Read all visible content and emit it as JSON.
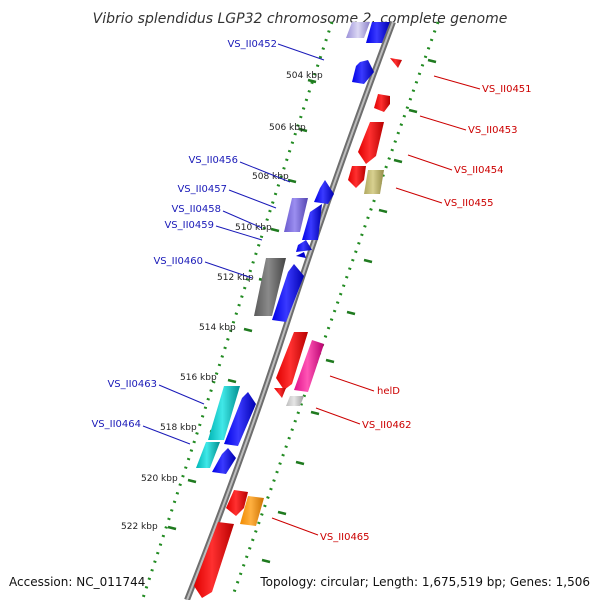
{
  "title": "Vibrio splendidus LGP32 chromosome 2, complete genome",
  "footer": {
    "accession": "Accession: NC_011744",
    "summary": "Topology: circular; Length: 1,675,519 bp; Genes: 1,506"
  },
  "colors": {
    "backbone": "#8c8c8c",
    "forward_label": "#1a1ab8",
    "reverse_label": "#cc0000",
    "forward_dots": "#228b22",
    "reverse_dots": "#228b22"
  },
  "ruler": [
    "504 kbp",
    "506 kbp",
    "508 kbp",
    "510 kbp",
    "512 kbp",
    "514 kbp",
    "516 kbp",
    "518 kbp",
    "520 kbp",
    "522 kbp"
  ],
  "forward_genes": [
    {
      "label": "VS_II0452"
    },
    {
      "label": "VS_II0456"
    },
    {
      "label": "VS_II0457"
    },
    {
      "label": "VS_II0458"
    },
    {
      "label": "VS_II0459"
    },
    {
      "label": "VS_II0460"
    },
    {
      "label": "VS_II0463"
    },
    {
      "label": "VS_II0464"
    }
  ],
  "reverse_genes": [
    {
      "label": "VS_II0451"
    },
    {
      "label": "VS_II0453"
    },
    {
      "label": "VS_II0454"
    },
    {
      "label": "VS_II0455"
    },
    {
      "label": "helD"
    },
    {
      "label": "VS_II0462"
    },
    {
      "label": "VS_II0465"
    }
  ]
}
